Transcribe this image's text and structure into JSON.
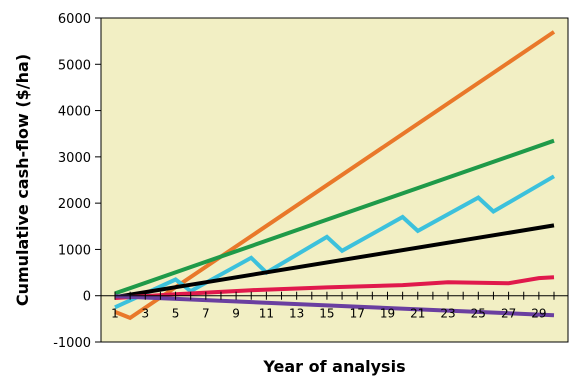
{
  "chart_data": {
    "type": "line",
    "title": "",
    "xlabel": "Year of analysis",
    "ylabel": "Cumulative cash-flow ($/ha)",
    "xlim": [
      1,
      30
    ],
    "ylim": [
      -1000,
      6000
    ],
    "yticks": [
      -1000,
      0,
      1000,
      2000,
      3000,
      4000,
      5000,
      6000
    ],
    "xticks": [
      1,
      3,
      5,
      7,
      9,
      11,
      13,
      15,
      17,
      19,
      21,
      23,
      25,
      27,
      29
    ],
    "grid": false,
    "plot_background": "#f2efc4",
    "series": [
      {
        "color": "#e9782a",
        "points": [
          [
            1,
            -350
          ],
          [
            2,
            -480
          ],
          [
            30,
            5700
          ]
        ]
      },
      {
        "color": "#1f9a49",
        "points": [
          [
            1,
            50
          ],
          [
            30,
            3350
          ]
        ]
      },
      {
        "color": "#3cc1dc",
        "points": [
          [
            1,
            -250
          ],
          [
            5,
            350
          ],
          [
            6,
            100
          ],
          [
            10,
            820
          ],
          [
            11,
            500
          ],
          [
            15,
            1270
          ],
          [
            16,
            970
          ],
          [
            20,
            1700
          ],
          [
            21,
            1400
          ],
          [
            25,
            2120
          ],
          [
            26,
            1820
          ],
          [
            30,
            2580
          ]
        ]
      },
      {
        "color": "#000000",
        "points": [
          [
            1,
            -30
          ],
          [
            30,
            1520
          ]
        ]
      },
      {
        "color": "#e0194c",
        "points": [
          [
            1,
            -50
          ],
          [
            5,
            30
          ],
          [
            10,
            120
          ],
          [
            15,
            180
          ],
          [
            20,
            230
          ],
          [
            23,
            290
          ],
          [
            27,
            270
          ],
          [
            29,
            380
          ],
          [
            30,
            400
          ]
        ]
      },
      {
        "color": "#6a3fa0",
        "points": [
          [
            1,
            -10
          ],
          [
            30,
            -420
          ]
        ]
      }
    ]
  }
}
